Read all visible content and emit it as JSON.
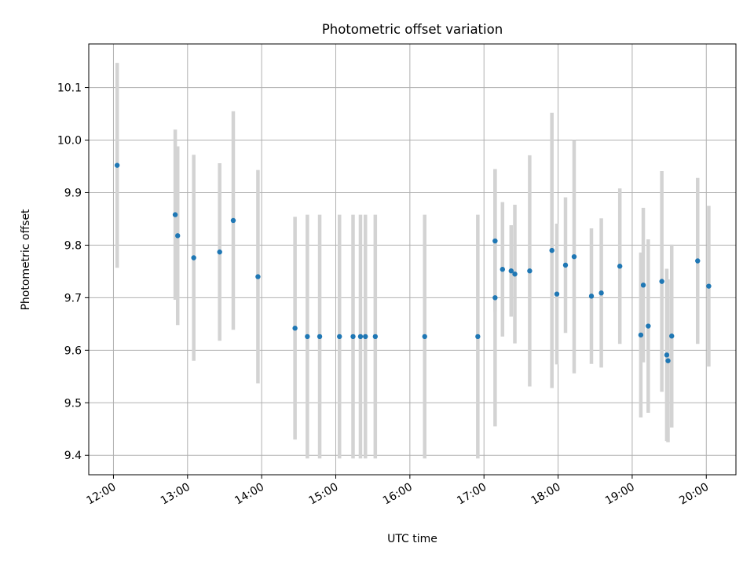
{
  "chart_data": {
    "type": "scatter",
    "title": "Photometric offset variation",
    "xlabel": "UTC time",
    "ylabel": "Photometric offset",
    "x_axis": "time",
    "xlim": [
      "11:40",
      "20:24"
    ],
    "ylim": [
      9.363,
      10.183
    ],
    "xticks": [
      "12:00",
      "13:00",
      "14:00",
      "15:00",
      "16:00",
      "17:00",
      "18:00",
      "19:00",
      "20:00"
    ],
    "yticks": [
      9.4,
      9.5,
      9.6,
      9.7,
      9.8,
      9.9,
      10.0,
      10.1
    ],
    "ytick_labels": [
      "9.4",
      "9.5",
      "9.6",
      "9.7",
      "9.8",
      "9.9",
      "10.0",
      "10.1"
    ],
    "grid": true,
    "point_color": "#1f77b4",
    "errorbar_color": "#d3d3d3",
    "series": [
      {
        "points": [
          {
            "t": "12:03",
            "y": 9.952,
            "err": 0.195
          },
          {
            "t": "12:50",
            "y": 9.858,
            "err": 0.162
          },
          {
            "t": "12:52",
            "y": 9.818,
            "err": 0.17
          },
          {
            "t": "13:05",
            "y": 9.776,
            "err": 0.196
          },
          {
            "t": "13:26",
            "y": 9.787,
            "err": 0.169
          },
          {
            "t": "13:37",
            "y": 9.847,
            "err": 0.208
          },
          {
            "t": "13:57",
            "y": 9.74,
            "err": 0.203
          },
          {
            "t": "14:27",
            "y": 9.642,
            "err": 0.212
          },
          {
            "t": "14:37",
            "y": 9.626,
            "err": 0.232
          },
          {
            "t": "14:47",
            "y": 9.626,
            "err": 0.232
          },
          {
            "t": "15:03",
            "y": 9.626,
            "err": 0.232
          },
          {
            "t": "15:14",
            "y": 9.626,
            "err": 0.232
          },
          {
            "t": "15:20",
            "y": 9.626,
            "err": 0.232
          },
          {
            "t": "15:24",
            "y": 9.626,
            "err": 0.232
          },
          {
            "t": "15:32",
            "y": 9.626,
            "err": 0.232
          },
          {
            "t": "16:12",
            "y": 9.626,
            "err": 0.232
          },
          {
            "t": "16:55",
            "y": 9.626,
            "err": 0.232
          },
          {
            "t": "17:09",
            "y": 9.808,
            "err": 0.135
          },
          {
            "t": "17:09",
            "y": 9.7,
            "err": 0.245
          },
          {
            "t": "17:15",
            "y": 9.754,
            "err": 0.128
          },
          {
            "t": "17:22",
            "y": 9.751,
            "err": 0.087
          },
          {
            "t": "17:25",
            "y": 9.745,
            "err": 0.132
          },
          {
            "t": "17:37",
            "y": 9.751,
            "err": 0.22
          },
          {
            "t": "17:55",
            "y": 9.79,
            "err": 0.262
          },
          {
            "t": "17:59",
            "y": 9.707,
            "err": 0.134
          },
          {
            "t": "18:06",
            "y": 9.762,
            "err": 0.129
          },
          {
            "t": "18:13",
            "y": 9.778,
            "err": 0.222
          },
          {
            "t": "18:27",
            "y": 9.703,
            "err": 0.129
          },
          {
            "t": "18:35",
            "y": 9.709,
            "err": 0.142
          },
          {
            "t": "18:50",
            "y": 9.76,
            "err": 0.148
          },
          {
            "t": "19:07",
            "y": 9.629,
            "err": 0.157
          },
          {
            "t": "19:09",
            "y": 9.724,
            "err": 0.147
          },
          {
            "t": "19:13",
            "y": 9.646,
            "err": 0.165
          },
          {
            "t": "19:24",
            "y": 9.731,
            "err": 0.21
          },
          {
            "t": "19:28",
            "y": 9.591,
            "err": 0.164
          },
          {
            "t": "19:29",
            "y": 9.58,
            "err": 0.155
          },
          {
            "t": "19:32",
            "y": 9.627,
            "err": 0.174
          },
          {
            "t": "19:53",
            "y": 9.77,
            "err": 0.158
          },
          {
            "t": "20:02",
            "y": 9.722,
            "err": 0.153
          }
        ]
      }
    ]
  }
}
